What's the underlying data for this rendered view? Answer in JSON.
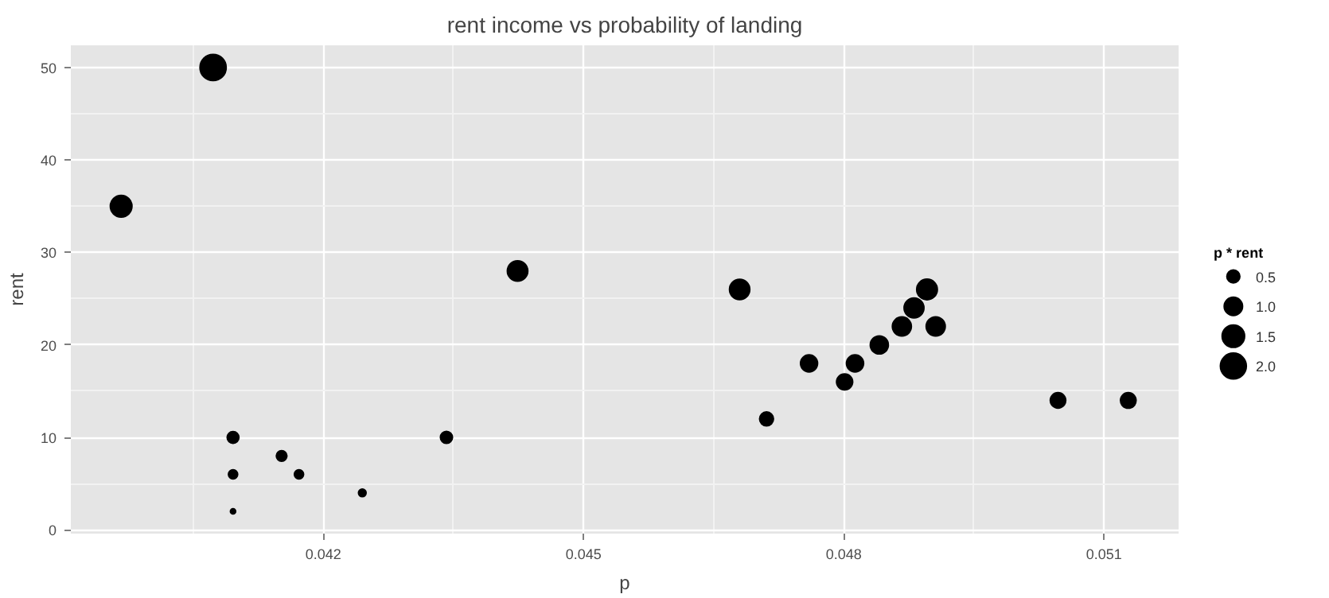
{
  "chart_data": {
    "type": "bubble",
    "title": "rent income vs probability of landing",
    "xlabel": "p",
    "ylabel": "rent",
    "legend_title": "p * rent",
    "x": [
      0.03967,
      0.04073,
      0.04096,
      0.04096,
      0.04096,
      0.04152,
      0.04172,
      0.04245,
      0.04342,
      0.04424,
      0.0468,
      0.04711,
      0.0476,
      0.04801,
      0.04813,
      0.04841,
      0.04867,
      0.04881,
      0.04896,
      0.04906,
      0.05047,
      0.05128
    ],
    "values": [
      35,
      50,
      10,
      6,
      2,
      8,
      6,
      4,
      10,
      28,
      26,
      12,
      18,
      16,
      18,
      20,
      22,
      24,
      26,
      22,
      14,
      14
    ],
    "sizes": [
      1.39,
      2.04,
      0.41,
      0.25,
      0.08,
      0.33,
      0.25,
      0.17,
      0.43,
      1.24,
      1.22,
      0.57,
      0.86,
      0.77,
      0.87,
      0.97,
      1.07,
      1.17,
      1.27,
      1.08,
      0.71,
      0.72
    ],
    "size_legend": [
      {
        "value": 0.5,
        "label": "0.5"
      },
      {
        "value": 1.0,
        "label": "1.0"
      },
      {
        "value": 1.5,
        "label": "1.5"
      },
      {
        "value": 2.0,
        "label": "2.0"
      }
    ],
    "color": "#000000",
    "xlim": [
      0.03909,
      0.05186
    ],
    "ylim": [
      -0.4,
      52.4
    ],
    "xticks": [
      0.042,
      0.045,
      0.048,
      0.051
    ],
    "yticks": [
      0,
      10,
      20,
      30,
      40,
      50
    ],
    "grid": true,
    "marker": "circle"
  }
}
